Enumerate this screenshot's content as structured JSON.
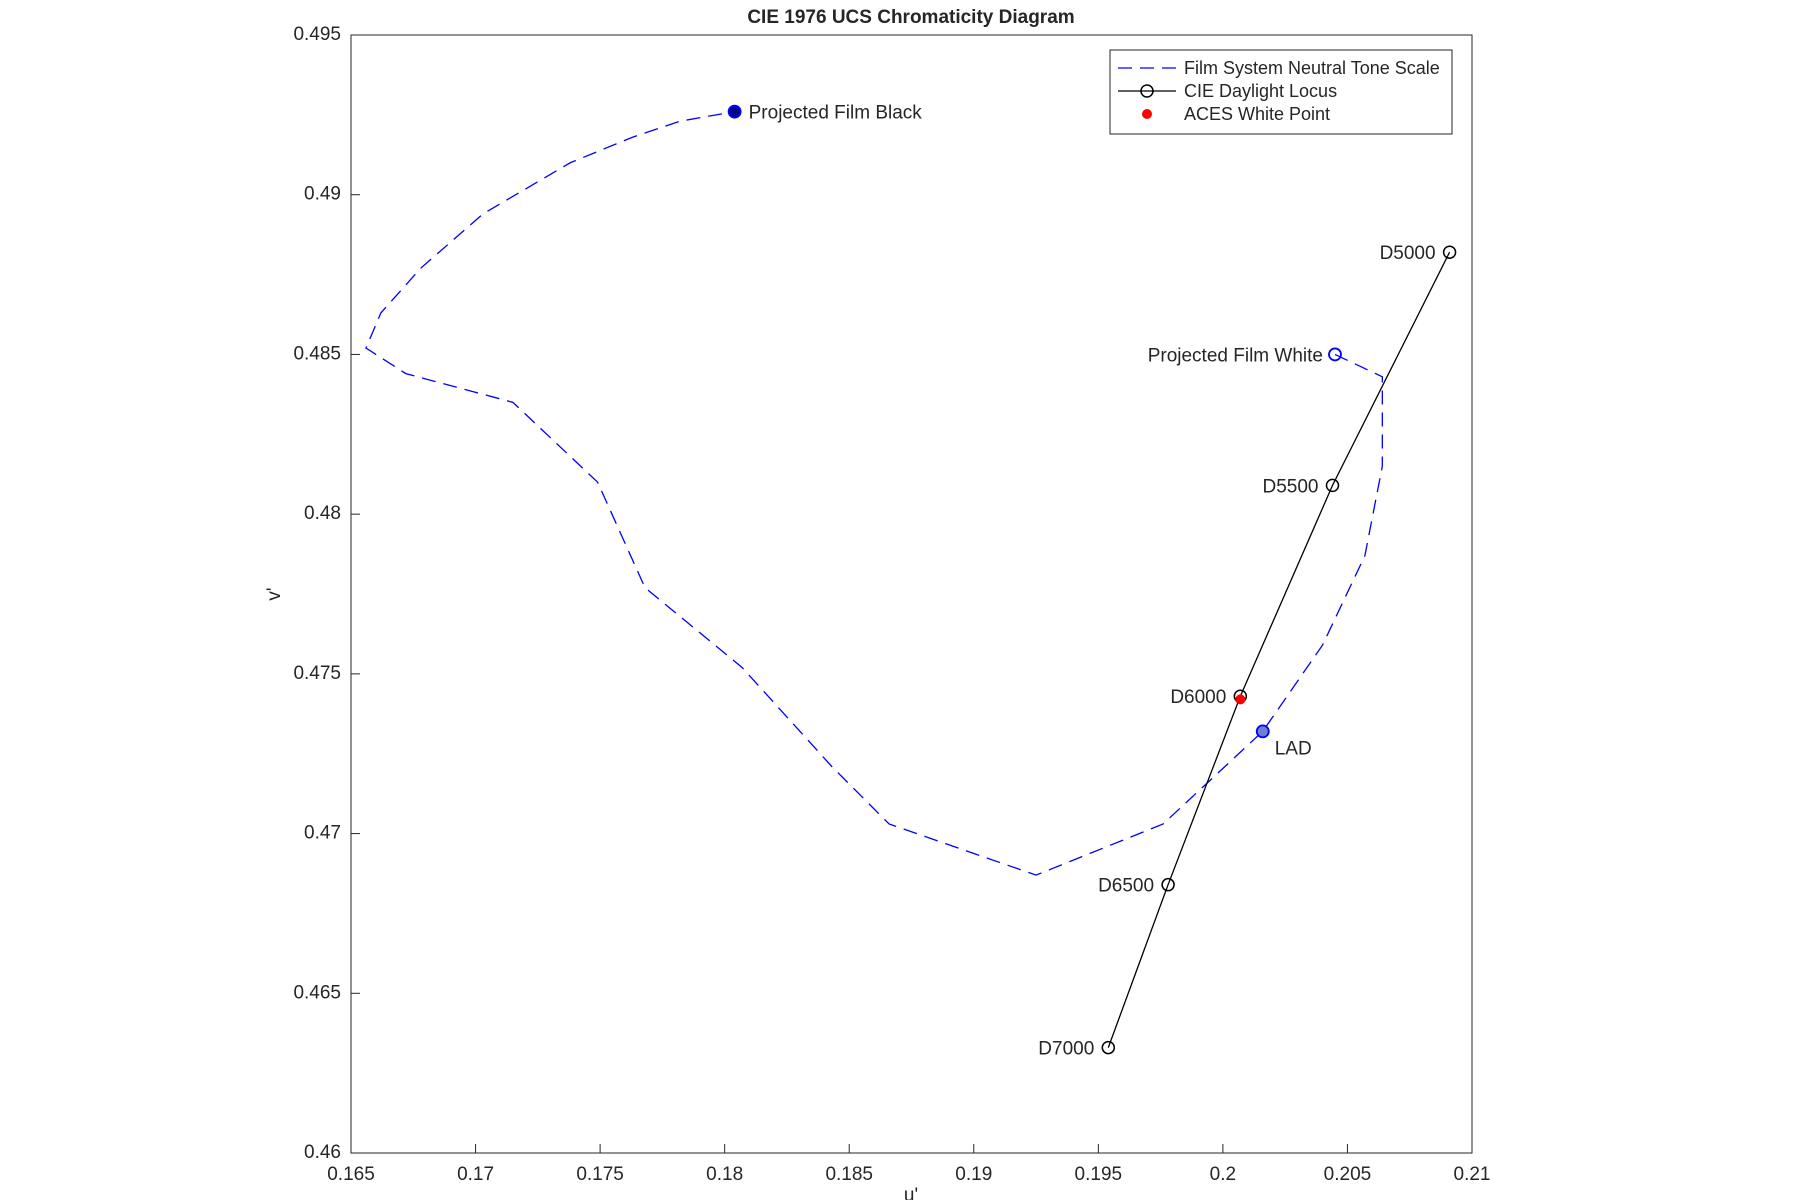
{
  "chart_data": {
    "type": "line",
    "title": "CIE 1976 UCS Chromaticity Diagram",
    "x_label": "u'",
    "y_label": "v'",
    "xlim": [
      0.165,
      0.21
    ],
    "ylim": [
      0.46,
      0.495
    ],
    "xticks": [
      0.165,
      0.17,
      0.175,
      0.18,
      0.185,
      0.19,
      0.195,
      0.2,
      0.205,
      0.21
    ],
    "yticks": [
      0.46,
      0.465,
      0.47,
      0.475,
      0.48,
      0.485,
      0.49,
      0.495
    ],
    "legend": "upper right",
    "series": [
      {
        "name": "Film System Neutral Tone Scale",
        "color": "#0000ff",
        "line": "dashed",
        "marker": "none",
        "x": [
          0.2045,
          0.2064,
          0.2064,
          0.2057,
          0.204,
          0.2016,
          0.1976,
          0.1925,
          0.1866,
          0.1843,
          0.1807,
          0.1768,
          0.1749,
          0.1715,
          0.1672,
          0.1656,
          0.1662,
          0.1678,
          0.1703,
          0.1738,
          0.1763,
          0.1782,
          0.1804
        ],
        "values": [
          0.485,
          0.4843,
          0.4815,
          0.4787,
          0.4759,
          0.4732,
          0.4703,
          0.4687,
          0.4703,
          0.4721,
          0.4752,
          0.4777,
          0.481,
          0.4835,
          0.4844,
          0.4852,
          0.4863,
          0.4877,
          0.4894,
          0.491,
          0.4918,
          0.4923,
          0.4926
        ]
      },
      {
        "name": "CIE Daylight Locus",
        "color": "#000000",
        "line": "solid",
        "marker": "open-circle",
        "x": [
          0.2091,
          0.2044,
          0.2007,
          0.1978,
          0.1954
        ],
        "values": [
          0.4882,
          0.4809,
          0.4743,
          0.4684,
          0.4633
        ],
        "point_labels": [
          "D5000",
          "D5500",
          "D6000",
          "D6500",
          "D7000"
        ]
      },
      {
        "name": "ACES White Point",
        "color": "#ff0000",
        "line": "none",
        "marker": "filled-circle",
        "x": [
          0.2007
        ],
        "values": [
          0.4742
        ]
      }
    ],
    "markers": [
      {
        "label": "Projected Film Black",
        "x": 0.1804,
        "y": 0.4926,
        "color": "#0000ff",
        "fill": "#00008b"
      },
      {
        "label": "Projected Film White",
        "x": 0.2045,
        "y": 0.485,
        "color": "#0000ff",
        "fill": "none"
      },
      {
        "label": "LAD",
        "x": 0.2016,
        "y": 0.4732,
        "color": "#0000ff",
        "fill": "#7080d0"
      }
    ]
  }
}
